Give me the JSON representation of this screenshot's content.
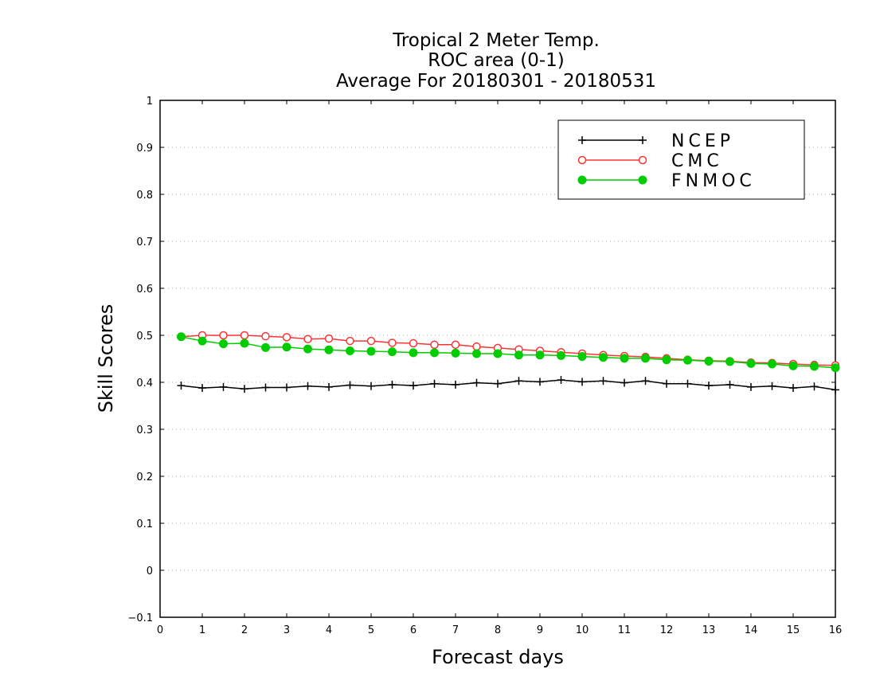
{
  "chart_data": {
    "type": "line",
    "title": [
      "Tropical 2 Meter Temp.",
      "ROC area (0-1)",
      "Average For 20180301 - 20180531"
    ],
    "xlabel": "Forecast days",
    "ylabel": "Skill Scores",
    "xlim": [
      0,
      16
    ],
    "ylim": [
      -0.1,
      1
    ],
    "xticks": [
      0,
      1,
      2,
      3,
      4,
      5,
      6,
      7,
      8,
      9,
      10,
      11,
      12,
      13,
      14,
      15,
      16
    ],
    "xtick_labels": [
      "0",
      "1",
      "2",
      "3",
      "4",
      "5",
      "6",
      "7",
      "8",
      "9",
      "10",
      "11",
      "12",
      "13",
      "14",
      "15",
      "16"
    ],
    "yticks": [
      -0.1,
      0,
      0.1,
      0.2,
      0.3,
      0.4,
      0.5,
      0.6,
      0.7,
      0.8,
      0.9,
      1
    ],
    "ytick_labels": [
      "−0.1",
      "0",
      "0.1",
      "0.2",
      "0.3",
      "0.4",
      "0.5",
      "0.6",
      "0.7",
      "0.8",
      "0.9",
      "1"
    ],
    "grid": "horizontal dotted",
    "legend_position": "top-right",
    "x": [
      0.5,
      1,
      1.5,
      2,
      2.5,
      3,
      3.5,
      4,
      4.5,
      5,
      5.5,
      6,
      6.5,
      7,
      7.5,
      8,
      8.5,
      9,
      9.5,
      10,
      10.5,
      11,
      11.5,
      12,
      12.5,
      13,
      13.5,
      14,
      14.5,
      15,
      15.5,
      16
    ],
    "series": [
      {
        "name": "NCEP",
        "color": "#000000",
        "marker": "plus",
        "values": [
          0.393,
          0.388,
          0.39,
          0.386,
          0.389,
          0.389,
          0.392,
          0.39,
          0.394,
          0.392,
          0.395,
          0.393,
          0.397,
          0.395,
          0.399,
          0.397,
          0.403,
          0.401,
          0.405,
          0.401,
          0.403,
          0.399,
          0.403,
          0.397,
          0.397,
          0.393,
          0.395,
          0.39,
          0.392,
          0.388,
          0.391,
          0.384
        ]
      },
      {
        "name": "CMC",
        "color": "#ff3333",
        "marker": "open-circle",
        "values": [
          0.497,
          0.5,
          0.5,
          0.5,
          0.498,
          0.496,
          0.492,
          0.493,
          0.488,
          0.488,
          0.484,
          0.483,
          0.48,
          0.48,
          0.476,
          0.473,
          0.47,
          0.467,
          0.464,
          0.461,
          0.458,
          0.456,
          0.454,
          0.451,
          0.448,
          0.446,
          0.445,
          0.442,
          0.441,
          0.439,
          0.437,
          0.436
        ]
      },
      {
        "name": "FNMOC",
        "color": "#00cc00",
        "marker": "filled-circle",
        "values": [
          0.497,
          0.488,
          0.482,
          0.483,
          0.474,
          0.475,
          0.471,
          0.469,
          0.467,
          0.466,
          0.465,
          0.463,
          0.463,
          0.462,
          0.461,
          0.461,
          0.458,
          0.458,
          0.457,
          0.455,
          0.453,
          0.451,
          0.451,
          0.448,
          0.447,
          0.445,
          0.444,
          0.44,
          0.439,
          0.435,
          0.434,
          0.431
        ]
      }
    ]
  }
}
